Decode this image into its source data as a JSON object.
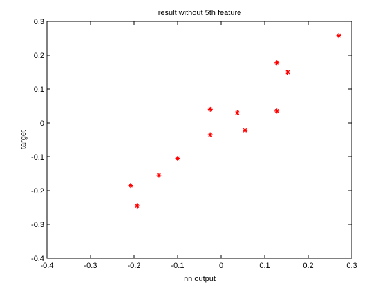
{
  "chart_data": {
    "type": "scatter",
    "title": "result without 5th feature",
    "xlabel": "nn output",
    "ylabel": "target",
    "xlim": [
      -0.4,
      0.3
    ],
    "ylim": [
      -0.4,
      0.3
    ],
    "xticks": [
      -0.4,
      -0.3,
      -0.2,
      -0.1,
      0,
      0.1,
      0.2,
      0.3
    ],
    "yticks": [
      -0.4,
      -0.3,
      -0.2,
      -0.1,
      0,
      0.1,
      0.2,
      0.3
    ],
    "xtick_labels": [
      "-0.4",
      "-0.3",
      "-0.2",
      "-0.1",
      "0",
      "0.1",
      "0.2",
      "0.3"
    ],
    "ytick_labels": [
      "-0.4",
      "-0.3",
      "-0.2",
      "-0.1",
      "0",
      "0.1",
      "0.2",
      "0.3"
    ],
    "grid": false,
    "marker": "*",
    "marker_color": "#ff0000",
    "x": [
      -0.208,
      -0.193,
      -0.143,
      -0.1,
      -0.025,
      -0.025,
      0.037,
      0.055,
      0.128,
      0.128,
      0.153,
      0.27
    ],
    "y": [
      -0.185,
      -0.245,
      -0.155,
      -0.105,
      0.04,
      -0.035,
      0.03,
      -0.022,
      0.178,
      0.035,
      0.15,
      0.258
    ]
  }
}
